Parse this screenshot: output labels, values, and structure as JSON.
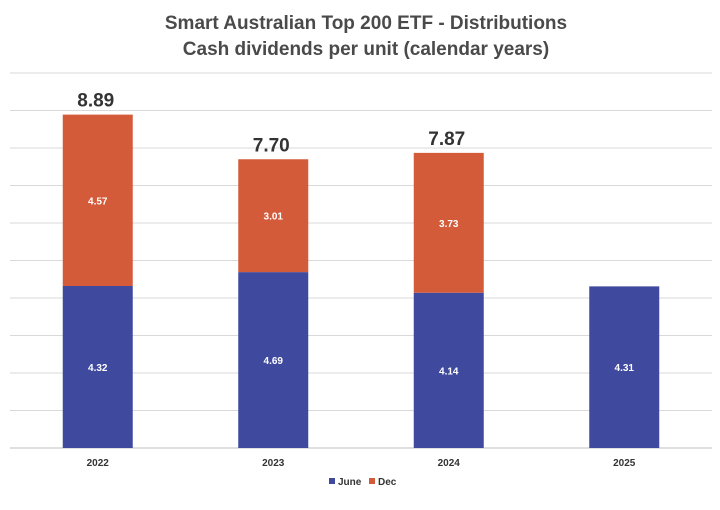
{
  "chart_data": {
    "type": "bar",
    "stacked": true,
    "title": "Smart Australian Top 200 ETF - Distributions",
    "subtitle": "Cash dividends per unit (calendar years)",
    "categories": [
      "2022",
      "2023",
      "2024",
      "2025"
    ],
    "series": [
      {
        "name": "June",
        "color": "#3f4a9f",
        "values": [
          4.32,
          4.69,
          4.14,
          4.31
        ],
        "labels": [
          "4.32",
          "4.69",
          "4.14",
          "4.31"
        ]
      },
      {
        "name": "Dec",
        "color": "#d45b3a",
        "values": [
          4.57,
          3.01,
          3.73,
          null
        ],
        "labels": [
          "4.57",
          "3.01",
          "3.73",
          ""
        ]
      }
    ],
    "totals": [
      "8.89",
      "7.70",
      "7.87",
      ""
    ],
    "ylim": [
      0,
      10
    ],
    "grid": true,
    "legend": "bottom"
  }
}
